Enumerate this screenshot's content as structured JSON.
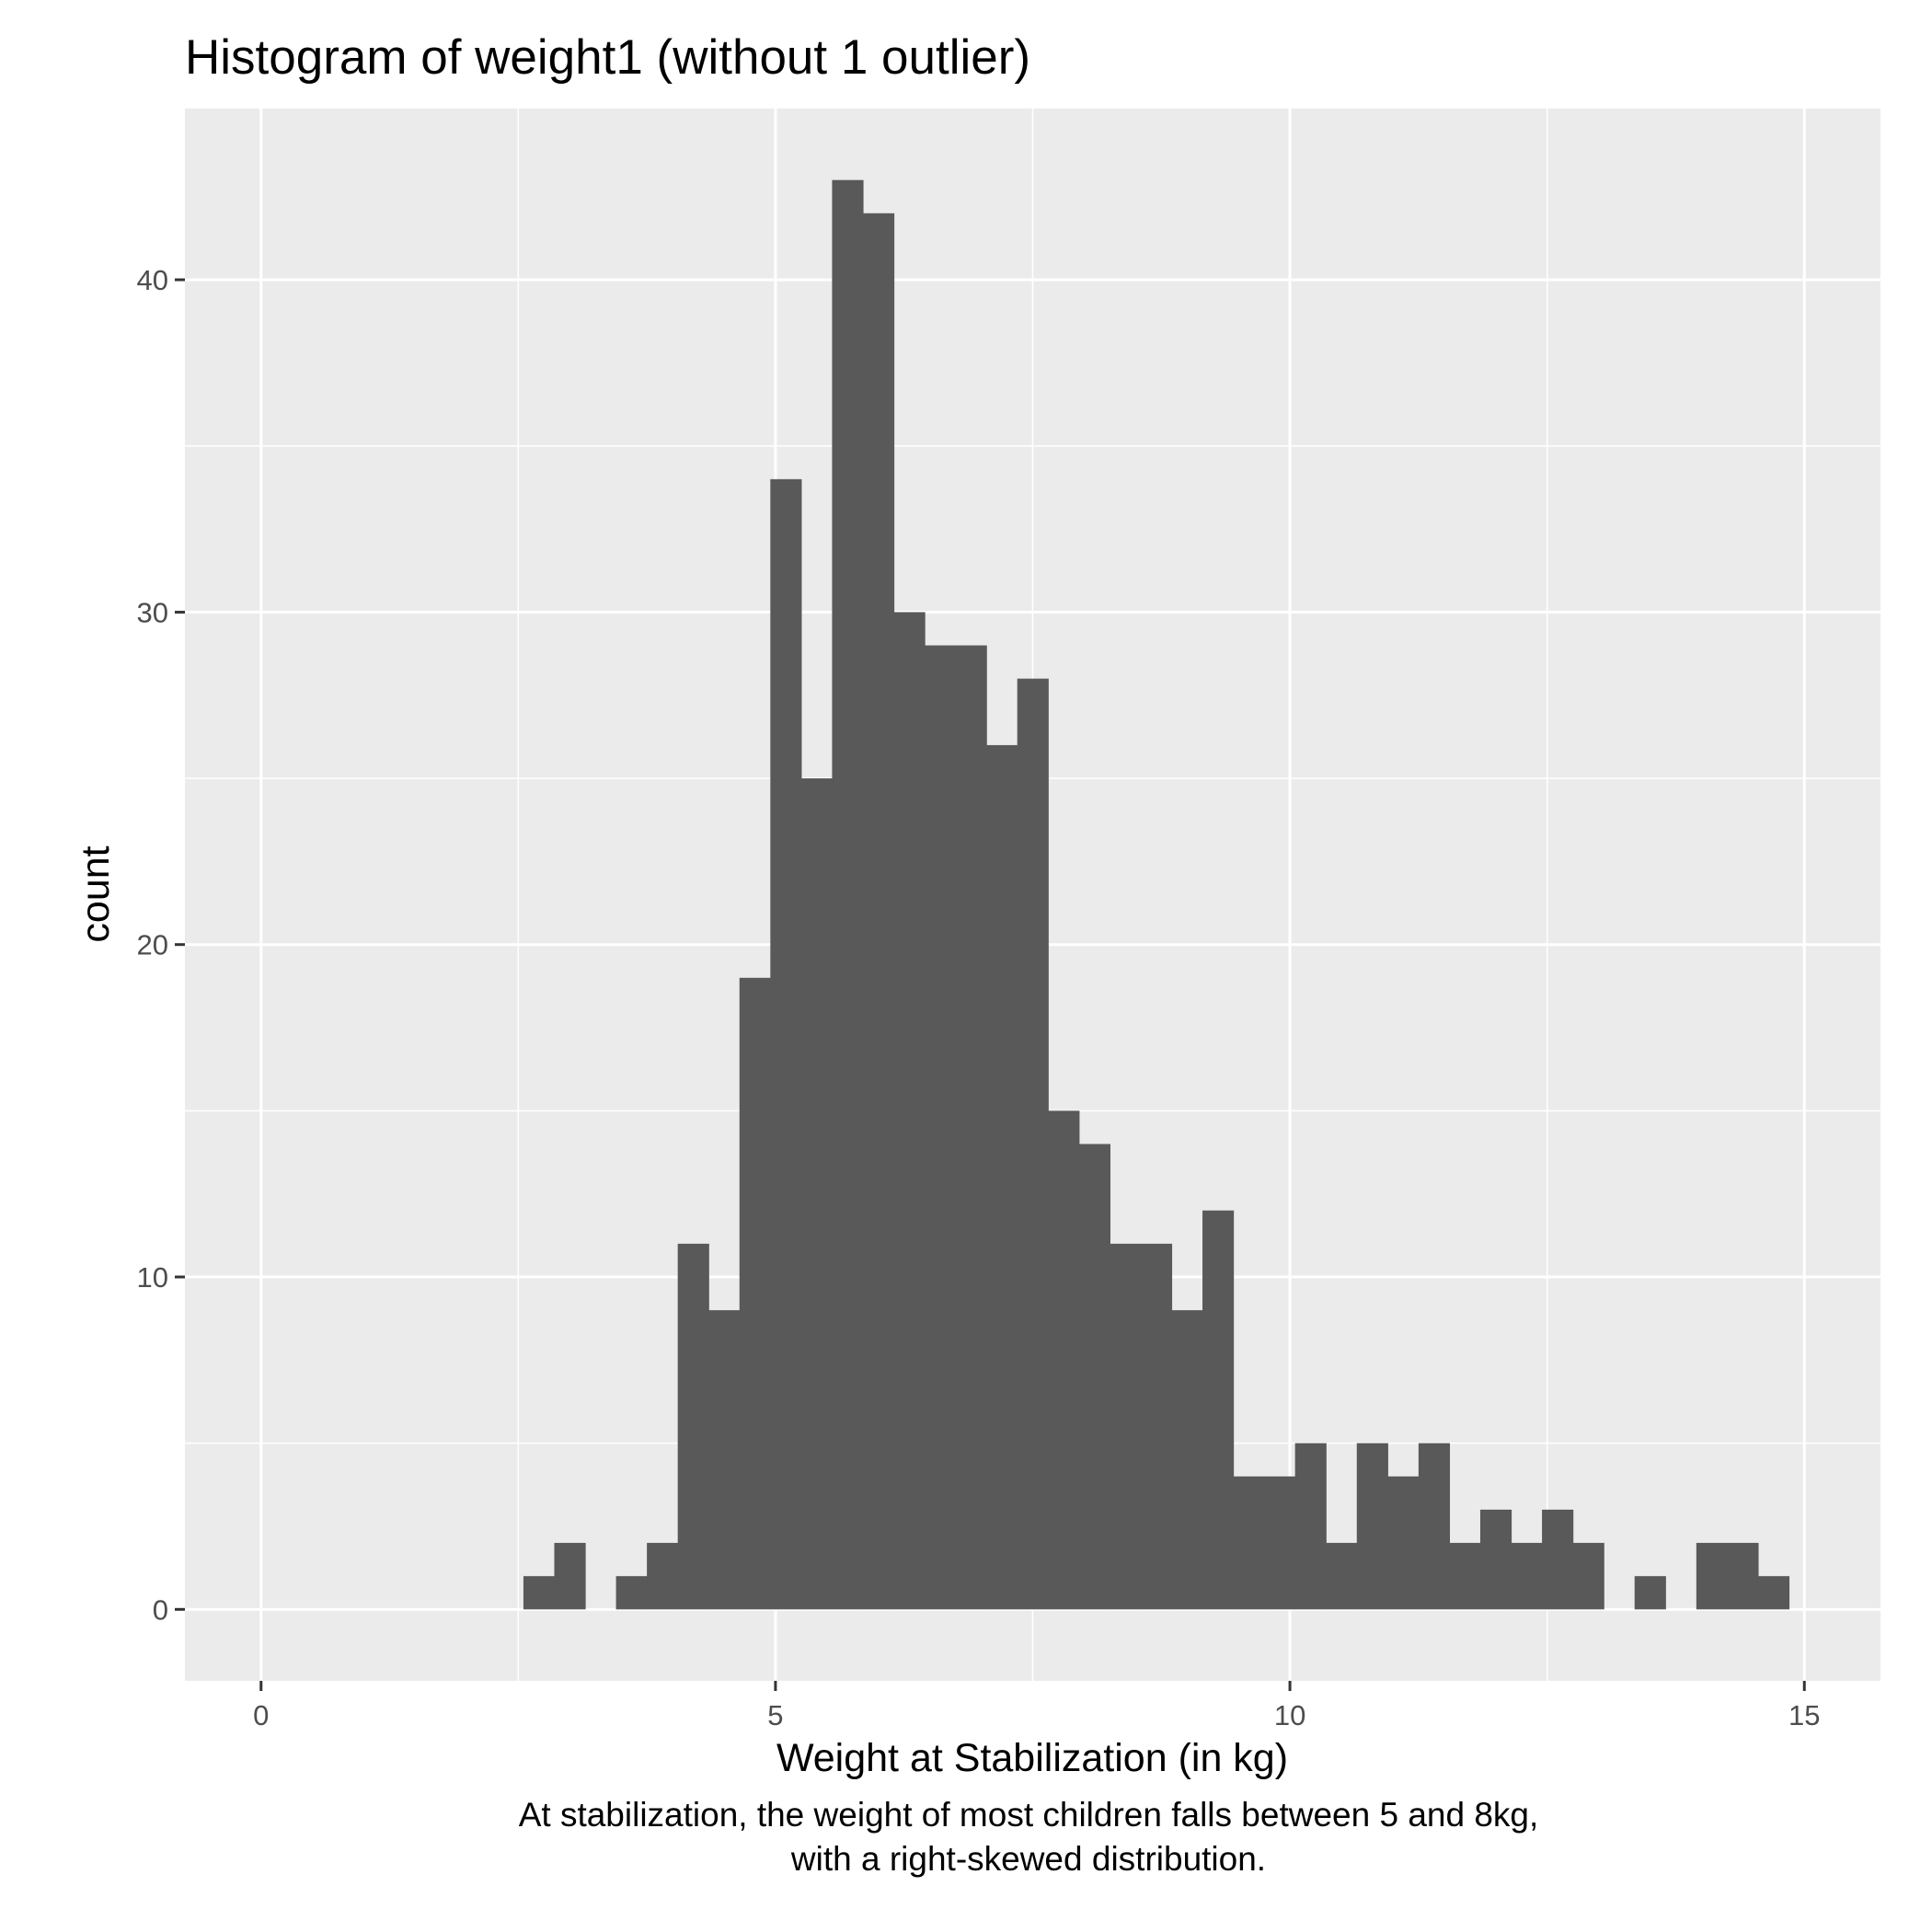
{
  "chart_data": {
    "type": "bar",
    "title": "Histogram of weight1 (without 1 outlier)",
    "xlabel": "Weight at Stabilization (in kg)",
    "ylabel": "count",
    "caption_lines": [
      "At stabilization, the weight of most children falls between 5 and 8kg,",
      "with a right-skewed distribution."
    ],
    "xlim": [
      -0.74,
      15.74
    ],
    "ylim": [
      -2.15,
      45.15
    ],
    "x_ticks": [
      0,
      5,
      10,
      15
    ],
    "x_tick_labels": [
      "0",
      "5",
      "10",
      "15"
    ],
    "y_ticks": [
      0,
      10,
      20,
      30,
      40
    ],
    "y_tick_labels": [
      "0",
      "10",
      "20",
      "30",
      "40"
    ],
    "x_minor_ticks": [
      2.5,
      7.5,
      12.5
    ],
    "y_minor_ticks": [
      5,
      15,
      25,
      35
    ],
    "grid": true,
    "bin_width": 0.3,
    "bins_x": [
      2.7,
      3.0,
      3.3,
      3.6,
      3.9,
      4.2,
      4.5,
      4.8,
      5.1,
      5.4,
      5.7,
      6.0,
      6.3,
      6.6,
      6.9,
      7.2,
      7.5,
      7.8,
      8.1,
      8.4,
      8.7,
      9.0,
      9.3,
      9.6,
      9.9,
      10.2,
      10.5,
      10.8,
      11.1,
      11.4,
      11.7,
      12.0,
      12.3,
      12.6,
      12.9,
      13.2,
      13.5,
      13.8,
      14.1,
      14.4,
      14.7
    ],
    "values": [
      1,
      2,
      0,
      1,
      2,
      11,
      9,
      19,
      34,
      25,
      43,
      42,
      30,
      29,
      29,
      26,
      28,
      15,
      14,
      11,
      11,
      9,
      12,
      4,
      4,
      5,
      2,
      5,
      4,
      5,
      2,
      3,
      2,
      3,
      2,
      0,
      1,
      0,
      2,
      2,
      1
    ],
    "colors": {
      "bar": "#595959",
      "panel": "#ebebeb",
      "grid": "#ffffff",
      "tick": "#333333"
    }
  }
}
